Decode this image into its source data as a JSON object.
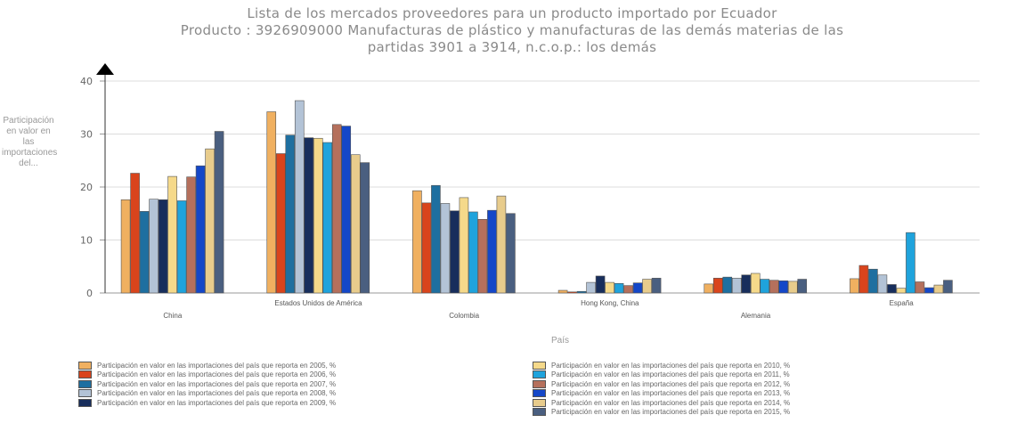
{
  "chart_data": {
    "type": "bar",
    "title": "Lista de los mercados proveedores para un producto importado por Ecuador",
    "subtitle_lines": [
      "Producto : 3926909000 Manufacturas de plástico y manufacturas de las demás materias de las",
      "partidas 3901 a 3914, n.c.o.p.: los demás"
    ],
    "xlabel": "País",
    "ylabel": "Participación en valor en las importaciones del...",
    "ylim": [
      0,
      40
    ],
    "yticks": [
      0,
      10,
      20,
      30,
      40
    ],
    "grid": true,
    "legend_position": "bottom",
    "categories": [
      "China",
      "Estados Unidos de América",
      "Colombia",
      "Hong Kong, China",
      "Alemania",
      "España"
    ],
    "series": [
      {
        "name": "Participación en valor en las importaciones del país que reporta en 2005, %",
        "color": "#f0b060",
        "values": [
          17.6,
          34.2,
          19.3,
          0.5,
          1.7,
          2.7
        ]
      },
      {
        "name": "Participación en valor en las importaciones del país que reporta en 2006, %",
        "color": "#d9441c",
        "values": [
          22.6,
          26.3,
          17.0,
          0.2,
          2.8,
          5.2
        ]
      },
      {
        "name": "Participación en valor en las importaciones del país que reporta en 2007, %",
        "color": "#1e6fa0",
        "values": [
          15.4,
          29.8,
          20.3,
          0.3,
          3.0,
          4.5
        ]
      },
      {
        "name": "Participación en valor en las importaciones del país que reporta en 2008, %",
        "color": "#b3c3d6",
        "values": [
          17.7,
          36.3,
          16.9,
          2.0,
          2.8,
          3.4
        ]
      },
      {
        "name": "Participación en valor en las importaciones del país que reporta en 2009, %",
        "color": "#182e5c",
        "values": [
          17.6,
          29.3,
          15.5,
          3.2,
          3.4,
          1.6
        ]
      },
      {
        "name": "Participación en valor en las importaciones del país que reporta en 2010, %",
        "color": "#f5d98a",
        "values": [
          22.0,
          29.2,
          18.0,
          2.0,
          3.7,
          0.9
        ]
      },
      {
        "name": "Participación en valor en las importaciones del país que reporta en 2011, %",
        "color": "#1fa3dc",
        "values": [
          17.4,
          28.4,
          15.3,
          1.8,
          2.6,
          11.4
        ]
      },
      {
        "name": "Participación en valor en las importaciones del país que reporta en 2012, %",
        "color": "#b5705c",
        "values": [
          21.9,
          31.8,
          13.9,
          1.4,
          2.4,
          2.1
        ]
      },
      {
        "name": "Participación en valor en las importaciones del país que reporta en 2013, %",
        "color": "#1447c8",
        "values": [
          24.0,
          31.5,
          15.6,
          1.9,
          2.3,
          1.0
        ]
      },
      {
        "name": "Participación en valor en las importaciones del país que reporta en 2014, %",
        "color": "#e8cc8c",
        "values": [
          27.2,
          26.1,
          18.3,
          2.6,
          2.2,
          1.5
        ]
      },
      {
        "name": "Participación en valor en las importaciones del país que reporta en 2015, %",
        "color": "#4a5f80",
        "values": [
          30.5,
          24.6,
          15.0,
          2.8,
          2.6,
          2.4
        ]
      }
    ]
  }
}
